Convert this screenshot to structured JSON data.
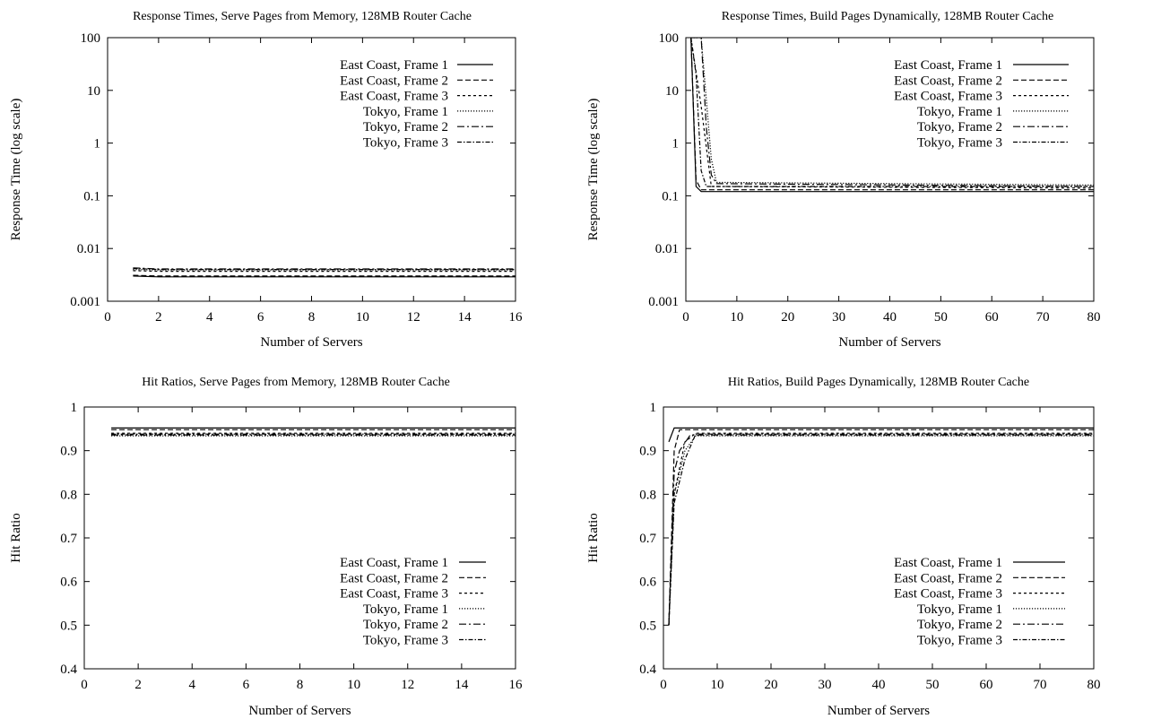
{
  "series_styles": [
    {
      "name": "East Coast, Frame 1",
      "dash": ""
    },
    {
      "name": "East Coast, Frame 2",
      "dash": "6,3"
    },
    {
      "name": "East Coast, Frame 3",
      "dash": "3,3"
    },
    {
      "name": "Tokyo, Frame 1",
      "dash": "1.2,1.8"
    },
    {
      "name": "Tokyo, Frame 2",
      "dash": "8,3,2,3"
    },
    {
      "name": "Tokyo, Frame 3",
      "dash": "5,2,1.5,2"
    }
  ],
  "line_color": "#000000",
  "chart_data": [
    {
      "type": "line",
      "title": "Response Times, Serve Pages from Memory, 128MB Router Cache",
      "xlabel": "Number of Servers",
      "ylabel": "Response Time (log scale)",
      "yscale": "log",
      "xlim": [
        0,
        16
      ],
      "ylim": [
        0.001,
        100
      ],
      "xticks": [
        0,
        2,
        4,
        6,
        8,
        10,
        12,
        14,
        16
      ],
      "yticks": [
        0.001,
        0.01,
        0.1,
        1,
        10,
        100
      ],
      "ytick_labels": [
        "0.001",
        "0.01",
        "0.1",
        "1",
        "10",
        "100"
      ],
      "legend_position": "top-right",
      "series": [
        {
          "name": "East Coast, Frame 1",
          "x": [
            1,
            2,
            16
          ],
          "y": [
            0.003,
            0.0029,
            0.0029
          ]
        },
        {
          "name": "East Coast, Frame 2",
          "x": [
            1,
            2,
            16
          ],
          "y": [
            0.0031,
            0.003,
            0.003
          ]
        },
        {
          "name": "East Coast, Frame 3",
          "x": [
            1,
            2,
            16
          ],
          "y": [
            0.0038,
            0.0037,
            0.0037
          ]
        },
        {
          "name": "Tokyo, Frame 1",
          "x": [
            1,
            2,
            16
          ],
          "y": [
            0.004,
            0.0039,
            0.0039
          ]
        },
        {
          "name": "Tokyo, Frame 2",
          "x": [
            1,
            2,
            16
          ],
          "y": [
            0.0043,
            0.0041,
            0.0041
          ]
        },
        {
          "name": "Tokyo, Frame 3",
          "x": [
            1,
            2,
            16
          ],
          "y": [
            0.0042,
            0.004,
            0.004
          ]
        }
      ]
    },
    {
      "type": "line",
      "title": "Response Times, Build Pages Dynamically, 128MB Router Cache",
      "xlabel": "Number of Servers",
      "ylabel": "Response Time (log scale)",
      "yscale": "log",
      "xlim": [
        0,
        80
      ],
      "ylim": [
        0.001,
        100
      ],
      "xticks": [
        0,
        10,
        20,
        30,
        40,
        50,
        60,
        70,
        80
      ],
      "yticks": [
        0.001,
        0.01,
        0.1,
        1,
        10,
        100
      ],
      "ytick_labels": [
        "0.001",
        "0.01",
        "0.1",
        "1",
        "10",
        "100"
      ],
      "legend_position": "top-right",
      "series": [
        {
          "name": "East Coast, Frame 1",
          "x": [
            1,
            2,
            3,
            80
          ],
          "y": [
            100,
            0.15,
            0.12,
            0.12
          ]
        },
        {
          "name": "East Coast, Frame 2",
          "x": [
            1,
            2,
            3,
            80
          ],
          "y": [
            100,
            0.2,
            0.13,
            0.13
          ]
        },
        {
          "name": "East Coast, Frame 3",
          "x": [
            1,
            3,
            5,
            80
          ],
          "y": [
            100,
            5,
            0.15,
            0.14
          ]
        },
        {
          "name": "Tokyo, Frame 1",
          "x": [
            1,
            3,
            5,
            6,
            80
          ],
          "y": [
            100,
            100,
            0.5,
            0.18,
            0.16
          ]
        },
        {
          "name": "Tokyo, Frame 2",
          "x": [
            1,
            3,
            4,
            5,
            6,
            80
          ],
          "y": [
            100,
            100,
            2,
            0.25,
            0.17,
            0.15
          ]
        },
        {
          "name": "Tokyo, Frame 3",
          "x": [
            1,
            2,
            3,
            4,
            80
          ],
          "y": [
            100,
            20,
            0.3,
            0.15,
            0.15
          ]
        }
      ]
    },
    {
      "type": "line",
      "title": "Hit Ratios, Serve Pages from Memory, 128MB Router Cache",
      "xlabel": "Number of Servers",
      "ylabel": "Hit Ratio",
      "yscale": "linear",
      "xlim": [
        0,
        16
      ],
      "ylim": [
        0.4,
        1
      ],
      "xticks": [
        0,
        2,
        4,
        6,
        8,
        10,
        12,
        14,
        16
      ],
      "yticks": [
        0.4,
        0.5,
        0.6,
        0.7,
        0.8,
        0.9,
        1
      ],
      "ytick_labels": [
        "0.4",
        "0.5",
        "0.6",
        "0.7",
        "0.8",
        "0.9",
        "1"
      ],
      "legend_position": "bottom-right",
      "series": [
        {
          "name": "East Coast, Frame 1",
          "x": [
            1,
            16
          ],
          "y": [
            0.952,
            0.952
          ]
        },
        {
          "name": "East Coast, Frame 2",
          "x": [
            1,
            16
          ],
          "y": [
            0.948,
            0.948
          ]
        },
        {
          "name": "East Coast, Frame 3",
          "x": [
            1,
            16
          ],
          "y": [
            0.94,
            0.94
          ]
        },
        {
          "name": "Tokyo, Frame 1",
          "x": [
            1,
            16
          ],
          "y": [
            0.934,
            0.934
          ]
        },
        {
          "name": "Tokyo, Frame 2",
          "x": [
            1,
            16
          ],
          "y": [
            0.936,
            0.936
          ]
        },
        {
          "name": "Tokyo, Frame 3",
          "x": [
            1,
            16
          ],
          "y": [
            0.938,
            0.938
          ]
        }
      ]
    },
    {
      "type": "line",
      "title": "Hit Ratios, Build Pages Dynamically, 128MB Router Cache",
      "xlabel": "Number of Servers",
      "ylabel": "Hit Ratio",
      "yscale": "linear",
      "xlim": [
        0,
        80
      ],
      "ylim": [
        0.4,
        1
      ],
      "xticks": [
        0,
        10,
        20,
        30,
        40,
        50,
        60,
        70,
        80
      ],
      "yticks": [
        0.4,
        0.5,
        0.6,
        0.7,
        0.8,
        0.9,
        1
      ],
      "ytick_labels": [
        "0.4",
        "0.5",
        "0.6",
        "0.7",
        "0.8",
        "0.9",
        "1"
      ],
      "legend_position": "bottom-right",
      "series": [
        {
          "name": "East Coast, Frame 1",
          "x": [
            1,
            2,
            80
          ],
          "y": [
            0.92,
            0.952,
            0.952
          ]
        },
        {
          "name": "East Coast, Frame 2",
          "x": [
            1,
            2,
            3,
            80
          ],
          "y": [
            0.5,
            0.9,
            0.948,
            0.948
          ]
        },
        {
          "name": "East Coast, Frame 3",
          "x": [
            1,
            2,
            4,
            6,
            80
          ],
          "y": [
            0.5,
            0.8,
            0.92,
            0.94,
            0.94
          ]
        },
        {
          "name": "Tokyo, Frame 1",
          "x": [
            1,
            2,
            4,
            6,
            80
          ],
          "y": [
            0.5,
            0.8,
            0.9,
            0.934,
            0.934
          ]
        },
        {
          "name": "Tokyo, Frame 2",
          "x": [
            1,
            2,
            3,
            5,
            80
          ],
          "y": [
            0.5,
            0.85,
            0.9,
            0.936,
            0.936
          ]
        },
        {
          "name": "Tokyo, Frame 3",
          "x": [
            1,
            2,
            4,
            6,
            80
          ],
          "y": [
            0.5,
            0.78,
            0.88,
            0.938,
            0.938
          ]
        }
      ]
    }
  ]
}
